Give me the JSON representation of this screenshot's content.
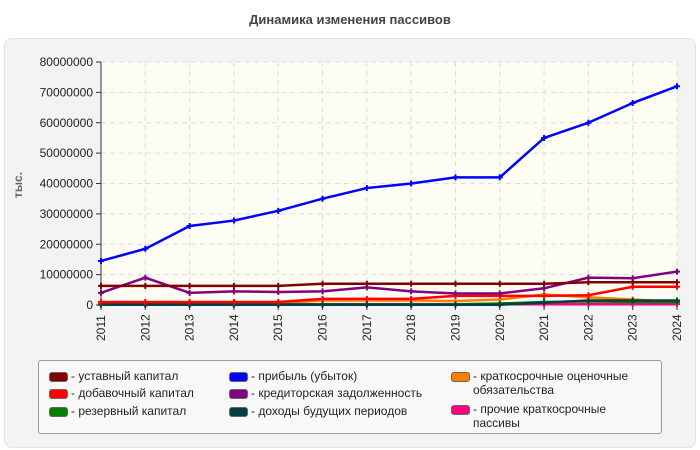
{
  "chart_data": {
    "type": "line",
    "title": "Динамика изменения пассивов",
    "ylabel": "тыс.",
    "xlabel": "",
    "ylim": [
      0,
      80000000
    ],
    "yticks": [
      "0",
      "10000000",
      "20000000",
      "30000000",
      "40000000",
      "50000000",
      "60000000",
      "70000000",
      "80000000"
    ],
    "categories": [
      "2011",
      "2012",
      "2013",
      "2014",
      "2015",
      "2016",
      "2017",
      "2018",
      "2019",
      "2020",
      "2021",
      "2022",
      "2023",
      "2024"
    ],
    "grid": true,
    "legend_position": "bottom",
    "series": [
      {
        "name": "- уставный капитал",
        "color": "#800000",
        "values": [
          6300000,
          6300000,
          6300000,
          6300000,
          6300000,
          7000000,
          7000000,
          7000000,
          7000000,
          7000000,
          7000000,
          7500000,
          7500000,
          7500000
        ]
      },
      {
        "name": "- добавочный капитал",
        "color": "#ff0000",
        "values": [
          1000000,
          1000000,
          1000000,
          1000000,
          1000000,
          2000000,
          2000000,
          2000000,
          3000000,
          3000000,
          3000000,
          3200000,
          6000000,
          6000000
        ]
      },
      {
        "name": "- резервный капитал",
        "color": "#008000",
        "values": [
          200000,
          200000,
          200000,
          200000,
          200000,
          200000,
          200000,
          200000,
          200000,
          500000,
          1000000,
          1200000,
          1000000,
          1000000
        ]
      },
      {
        "name": "- прибыль (убыток)",
        "color": "#0000ff",
        "values": [
          14500000,
          18500000,
          26000000,
          27800000,
          31000000,
          35000000,
          38500000,
          40000000,
          42000000,
          42000000,
          55000000,
          60000000,
          66500000,
          72000000
        ]
      },
      {
        "name": "- кредиторская задолженность",
        "color": "#800080",
        "values": [
          4000000,
          9000000,
          4000000,
          4500000,
          4300000,
          4500000,
          5800000,
          4500000,
          3800000,
          3800000,
          5500000,
          9000000,
          8800000,
          11000000
        ]
      },
      {
        "name": "- доходы будущих периодов",
        "color": "#004040",
        "values": [
          100000,
          100000,
          100000,
          100000,
          100000,
          100000,
          100000,
          100000,
          100000,
          100000,
          800000,
          1500000,
          1500000,
          1500000
        ]
      },
      {
        "name": "- краткосрочные оценочные обязательства",
        "color": "#ff8000",
        "values": [
          700000,
          700000,
          700000,
          700000,
          700000,
          1500000,
          1500000,
          1500000,
          1300000,
          1800000,
          3500000,
          2500000,
          1800000,
          1000000
        ]
      },
      {
        "name": "- прочие краткосрочные пассивы",
        "color": "#ff0080",
        "values": [
          300000,
          300000,
          300000,
          300000,
          300000,
          300000,
          300000,
          300000,
          300000,
          300000,
          300000,
          300000,
          300000,
          300000
        ]
      }
    ]
  }
}
